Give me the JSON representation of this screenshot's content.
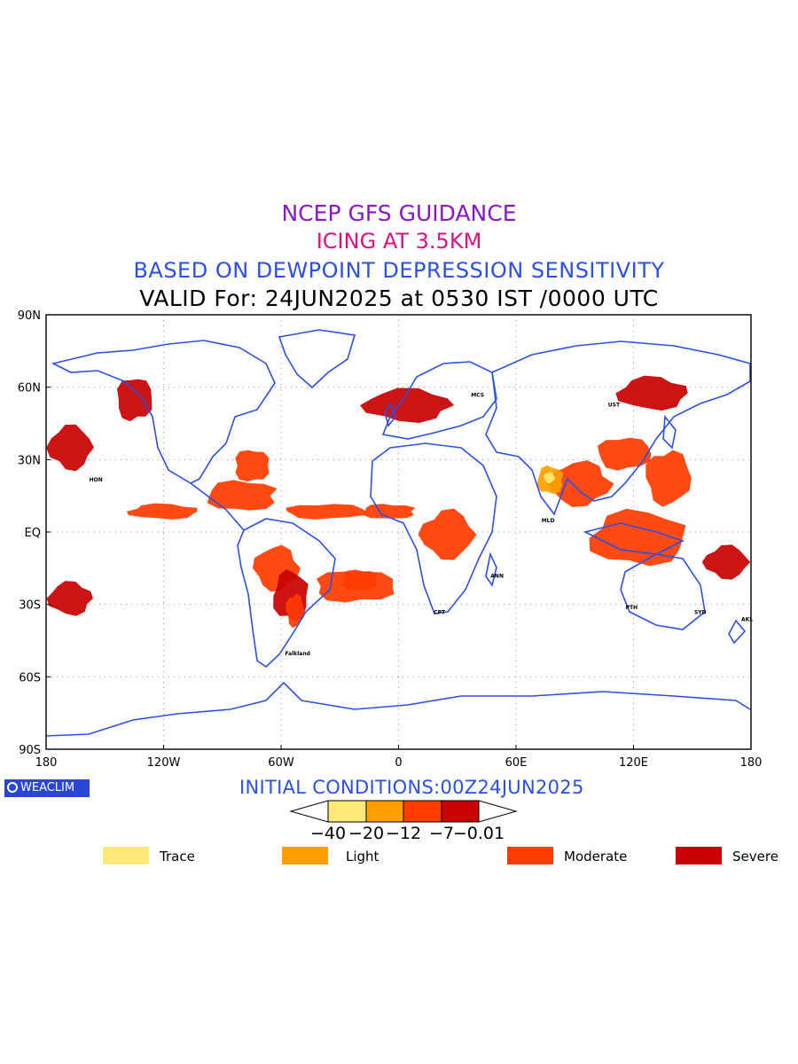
{
  "titles": {
    "line1": "NCEP GFS GUIDANCE",
    "line2": "ICING AT 3.5KM",
    "line3": "BASED ON DEWPOINT DEPRESSION SENSITIVITY",
    "line4": "VALID For: 24JUN2025 at 0530 IST /0000 UTC",
    "line1_color": "#8a18c8",
    "line2_color": "#e0107e",
    "line3_color": "#2c4fe6",
    "line4_color": "#000000"
  },
  "map": {
    "projection": "equirectangular",
    "lon_range": [
      -180,
      180
    ],
    "lat_range": [
      -90,
      90
    ],
    "lat_labels": [
      "90N",
      "60N",
      "30N",
      "EQ",
      "30S",
      "60S",
      "90S"
    ],
    "lat_values": [
      90,
      60,
      30,
      0,
      -30,
      -60,
      -90
    ],
    "lon_labels": [
      "180",
      "120W",
      "60W",
      "0",
      "60E",
      "120E",
      "180"
    ],
    "lon_values": [
      -180,
      -120,
      -60,
      0,
      60,
      120,
      180
    ],
    "grid": "dotted",
    "coast_color": "#2c4fe6",
    "station_labels": [
      "HON",
      "Falkland",
      "MCS",
      "UST",
      "MLD",
      "ANN",
      "CPT",
      "PTH",
      "SYD",
      "AKL"
    ],
    "icing_regions": [
      {
        "level": "moderate",
        "lon": [
          -100,
          -60
        ],
        "lat": [
          8,
          22
        ]
      },
      {
        "level": "moderate",
        "lon": [
          -75,
          -50
        ],
        "lat": [
          -25,
          -5
        ]
      },
      {
        "level": "severe",
        "lon": [
          -65,
          -45
        ],
        "lat": [
          -38,
          -15
        ]
      },
      {
        "level": "moderate",
        "lon": [
          -58,
          -48
        ],
        "lat": [
          -40,
          -25
        ]
      },
      {
        "level": "moderate",
        "lon": [
          -140,
          -100
        ],
        "lat": [
          5,
          12
        ]
      },
      {
        "level": "moderate",
        "lon": [
          -60,
          -15
        ],
        "lat": [
          5,
          12
        ]
      },
      {
        "level": "severe",
        "lon": [
          -180,
          -155
        ],
        "lat": [
          -35,
          -20
        ]
      },
      {
        "level": "severe",
        "lon": [
          -145,
          -125
        ],
        "lat": [
          45,
          65
        ]
      },
      {
        "level": "severe",
        "lon": [
          -180,
          -155
        ],
        "lat": [
          25,
          45
        ]
      },
      {
        "level": "moderate",
        "lon": [
          -85,
          -65
        ],
        "lat": [
          20,
          35
        ]
      },
      {
        "level": "moderate",
        "lon": [
          10,
          40
        ],
        "lat": [
          -12,
          10
        ]
      },
      {
        "level": "moderate",
        "lon": [
          -20,
          10
        ],
        "lat": [
          5,
          12
        ]
      },
      {
        "level": "moderate",
        "lon": [
          75,
          110
        ],
        "lat": [
          10,
          30
        ]
      },
      {
        "level": "light",
        "lon": [
          70,
          85
        ],
        "lat": [
          15,
          28
        ]
      },
      {
        "level": "trace",
        "lon": [
          74,
          80
        ],
        "lat": [
          20,
          25
        ]
      },
      {
        "level": "moderate",
        "lon": [
          95,
          150
        ],
        "lat": [
          -15,
          10
        ]
      },
      {
        "level": "moderate",
        "lon": [
          125,
          150
        ],
        "lat": [
          10,
          35
        ]
      },
      {
        "level": "severe",
        "lon": [
          110,
          150
        ],
        "lat": [
          50,
          65
        ]
      },
      {
        "level": "moderate",
        "lon": [
          100,
          130
        ],
        "lat": [
          25,
          40
        ]
      },
      {
        "level": "severe",
        "lon": [
          -20,
          30
        ],
        "lat": [
          45,
          60
        ]
      },
      {
        "level": "moderate",
        "lon": [
          -45,
          0
        ],
        "lat": [
          -30,
          -15
        ]
      },
      {
        "level": "severe",
        "lon": [
          155,
          180
        ],
        "lat": [
          -20,
          -5
        ]
      },
      {
        "level": "moderate",
        "lon": [
          -30,
          -10
        ],
        "lat": [
          -25,
          -15
        ]
      }
    ]
  },
  "footer": {
    "logo_text": "WEACLIM",
    "initial_conditions": "INITIAL CONDITIONS:00Z24JUN2025",
    "initial_color": "#2c4fe6"
  },
  "colorbar": {
    "ticks": [
      "−40",
      "−20",
      "−12",
      "−7",
      "−0.01"
    ],
    "colors": [
      "#ffe97a",
      "#ffa000",
      "#ff3b00",
      "#c80000"
    ]
  },
  "legend": [
    {
      "label": "Trace",
      "color": "#ffe97a"
    },
    {
      "label": "Light",
      "color": "#ffa000"
    },
    {
      "label": "Moderate",
      "color": "#ff3b00"
    },
    {
      "label": "Severe",
      "color": "#c80000"
    }
  ]
}
